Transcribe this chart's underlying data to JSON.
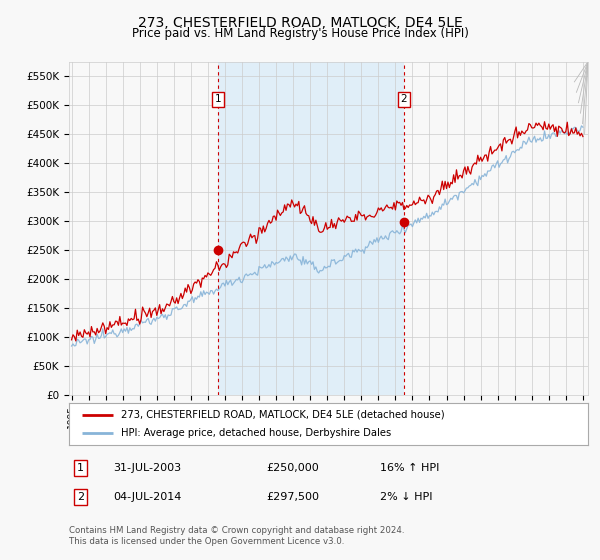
{
  "title": "273, CHESTERFIELD ROAD, MATLOCK, DE4 5LE",
  "subtitle": "Price paid vs. HM Land Registry's House Price Index (HPI)",
  "title_fontsize": 10,
  "subtitle_fontsize": 8.5,
  "ylabel_ticks": [
    "£0",
    "£50K",
    "£100K",
    "£150K",
    "£200K",
    "£250K",
    "£300K",
    "£350K",
    "£400K",
    "£450K",
    "£500K",
    "£550K"
  ],
  "ytick_values": [
    0,
    50000,
    100000,
    150000,
    200000,
    250000,
    300000,
    350000,
    400000,
    450000,
    500000,
    550000
  ],
  "ylim": [
    0,
    575000
  ],
  "year_start": 1995,
  "year_end": 2025,
  "hpi_color": "#88b4d8",
  "price_color": "#cc0000",
  "vline_color": "#cc0000",
  "shade_color": "#e0eef8",
  "background_color": "#f8f8f8",
  "grid_color": "#cccccc",
  "sale1_year": 2003.58,
  "sale1_price": 250000,
  "sale2_year": 2014.5,
  "sale2_price": 297500,
  "legend_line1": "273, CHESTERFIELD ROAD, MATLOCK, DE4 5LE (detached house)",
  "legend_line2": "HPI: Average price, detached house, Derbyshire Dales",
  "table_row1_label": "1",
  "table_row1_date": "31-JUL-2003",
  "table_row1_price": "£250,000",
  "table_row1_hpi": "16% ↑ HPI",
  "table_row2_label": "2",
  "table_row2_date": "04-JUL-2014",
  "table_row2_price": "£297,500",
  "table_row2_hpi": "2% ↓ HPI",
  "footer": "Contains HM Land Registry data © Crown copyright and database right 2024.\nThis data is licensed under the Open Government Licence v3.0."
}
